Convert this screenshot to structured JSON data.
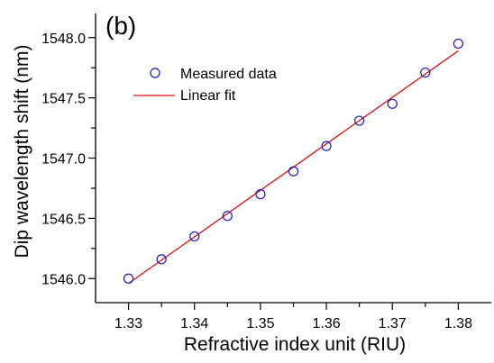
{
  "chart_data": {
    "type": "scatter",
    "panel_label": "(b)",
    "xlabel": "Refractive index unit (RIU)",
    "ylabel": "Dip wavelength shift (nm)",
    "xlim": [
      1.325,
      1.385
    ],
    "ylim": [
      1545.8,
      1548.2
    ],
    "x_ticks": [
      "1.33",
      "1.34",
      "1.35",
      "1.36",
      "1.37",
      "1.38"
    ],
    "y_ticks": [
      "1546.0",
      "1546.5",
      "1547.0",
      "1547.5",
      "1548.0"
    ],
    "x_tick_values": [
      1.33,
      1.34,
      1.35,
      1.36,
      1.37,
      1.38
    ],
    "y_tick_values": [
      1546.0,
      1546.5,
      1547.0,
      1547.5,
      1548.0
    ],
    "grid": false,
    "legend_position": "top-left",
    "series": [
      {
        "name": "Measured data",
        "kind": "scatter",
        "marker": "open-circle",
        "color": "#1a1acc",
        "x": [
          1.33,
          1.335,
          1.34,
          1.345,
          1.35,
          1.355,
          1.36,
          1.365,
          1.37,
          1.375,
          1.38
        ],
        "y": [
          1546.0,
          1546.16,
          1546.35,
          1546.52,
          1546.7,
          1546.89,
          1547.1,
          1547.31,
          1547.45,
          1547.71,
          1547.95
        ]
      },
      {
        "name": "Linear fit",
        "kind": "line",
        "color": "#e01010",
        "x": [
          1.33,
          1.38
        ],
        "y": [
          1545.96,
          1547.89
        ]
      }
    ]
  }
}
